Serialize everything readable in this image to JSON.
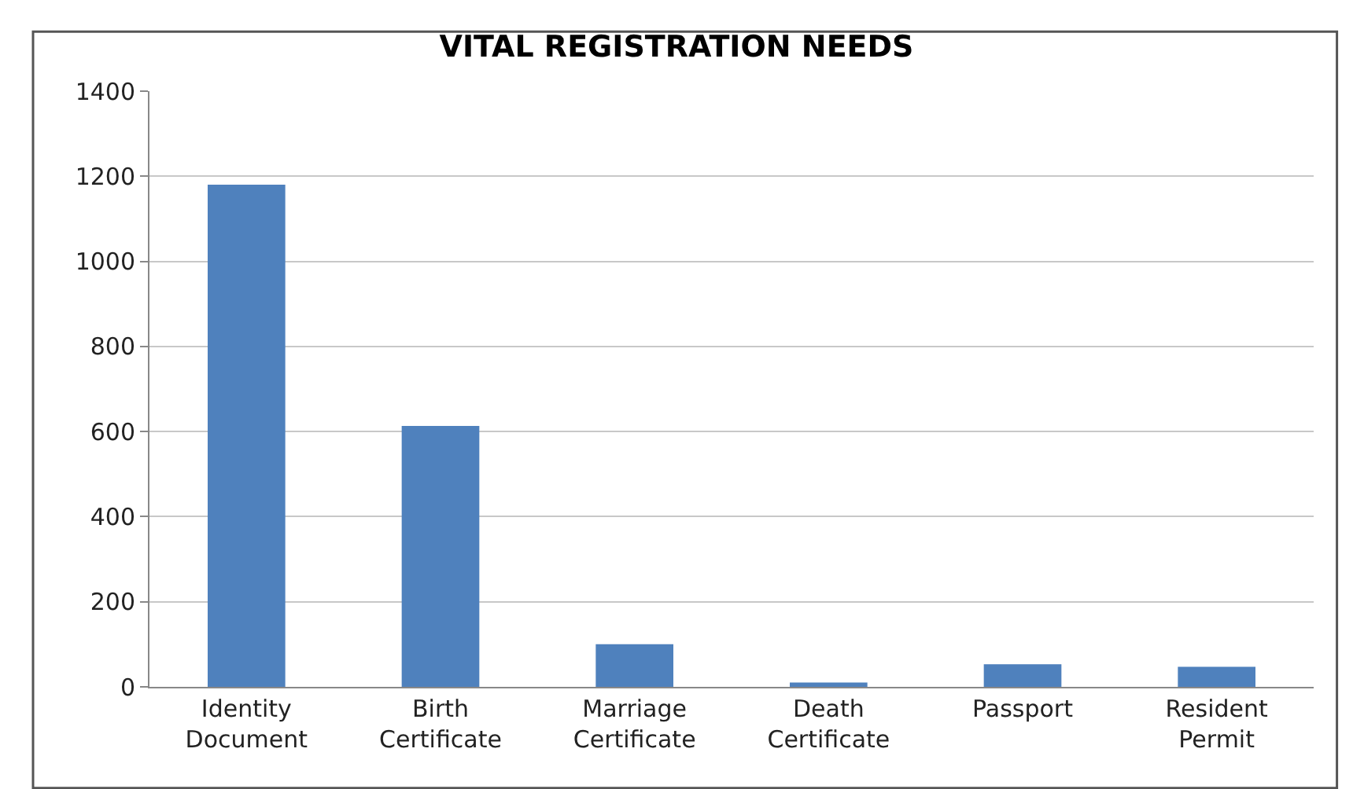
{
  "chart_data": {
    "type": "bar",
    "title": "VITAL REGISTRATION NEEDS",
    "categories": [
      "Identity Document",
      "Birth Certificate",
      "Marriage Certificate",
      "Death Certificate",
      "Passport",
      "Resident Permit"
    ],
    "values": [
      1180,
      613,
      100,
      10,
      53,
      47
    ],
    "color": "#4f81bd",
    "ylim": [
      0,
      1400
    ],
    "yticks": [
      0,
      200,
      400,
      600,
      800,
      1000,
      1200,
      1400
    ],
    "grid": "y"
  }
}
